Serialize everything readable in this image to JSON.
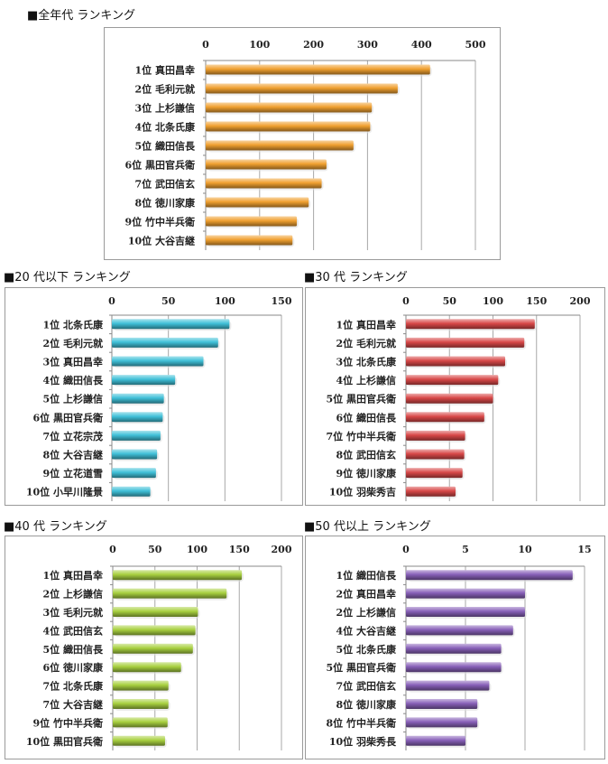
{
  "chart_data": [
    {
      "type": "bar",
      "title": "■全年代 ランキング",
      "categories": [
        "1位 真田昌幸",
        "2位 毛利元就",
        "3位 上杉謙信",
        "4位 北条氏康",
        "5位 織田信長",
        "6位 黒田官兵衛",
        "7位 武田信玄",
        "8位 徳川家康",
        "9位 竹中半兵衛",
        "10位 大谷吉継"
      ],
      "values": [
        416,
        356,
        308,
        305,
        274,
        224,
        215,
        191,
        169,
        161
      ],
      "xlim": [
        0,
        500
      ],
      "ticks": [
        "0",
        "100",
        "200",
        "300",
        "400",
        "500"
      ],
      "grid": true,
      "color": "#f0a030"
    },
    {
      "type": "bar",
      "title": "■20 代以下 ランキング",
      "categories": [
        "1位 北条氏康",
        "2位 毛利元就",
        "3位 真田昌幸",
        "4位 織田信長",
        "5位 上杉謙信",
        "6位 黒田官兵衛",
        "7位 立花宗茂",
        "8位 大谷吉継",
        "9位 立花道雪",
        "10位 小早川隆景"
      ],
      "values": [
        104,
        94,
        81,
        56,
        46,
        45,
        43,
        40,
        39,
        34
      ],
      "xlim": [
        0,
        150
      ],
      "ticks": [
        "0",
        "50",
        "100",
        "150"
      ],
      "grid": true,
      "color": "#40c0d8"
    },
    {
      "type": "bar",
      "title": "■30 代 ランキング",
      "categories": [
        "1位 真田昌幸",
        "2位 毛利元就",
        "3位 北条氏康",
        "4位 上杉謙信",
        "5位 黒田官兵衛",
        "6位 織田信長",
        "7位 竹中半兵衛",
        "8位 武田信玄",
        "9位 徳川家康",
        "10位 羽柴秀吉"
      ],
      "values": [
        148,
        136,
        114,
        106,
        100,
        90,
        68,
        67,
        65,
        57
      ],
      "xlim": [
        0,
        200
      ],
      "ticks": [
        "0",
        "50",
        "100",
        "150",
        "200"
      ],
      "grid": true,
      "color": "#d84848"
    },
    {
      "type": "bar",
      "title": "■40 代 ランキング",
      "categories": [
        "1位 真田昌幸",
        "2位 上杉謙信",
        "3位 毛利元就",
        "4位 武田信玄",
        "5位 織田信長",
        "6位 徳川家康",
        "7位 北条氏康",
        "7位 大谷吉継",
        "9位 竹中半兵衛",
        "10位 黒田官兵衛"
      ],
      "values": [
        153,
        135,
        101,
        98,
        95,
        81,
        66,
        66,
        65,
        62
      ],
      "xlim": [
        0,
        200
      ],
      "ticks": [
        "0",
        "50",
        "100",
        "150",
        "200"
      ],
      "grid": true,
      "color": "#a8d040"
    },
    {
      "type": "bar",
      "title": "■50 代以上 ランキング",
      "categories": [
        "1位 織田信長",
        "2位 真田昌幸",
        "2位 上杉謙信",
        "4位 大谷吉継",
        "5位 北条氏康",
        "5位 黒田官兵衛",
        "7位 武田信玄",
        "8位 徳川家康",
        "8位 竹中半兵衛",
        "10位 羽柴秀長"
      ],
      "values": [
        14,
        10,
        10,
        9,
        8,
        8,
        7,
        6,
        6,
        5
      ],
      "xlim": [
        0,
        15
      ],
      "ticks": [
        "0",
        "5",
        "10",
        "15"
      ],
      "grid": true,
      "color": "#8860b8"
    }
  ]
}
